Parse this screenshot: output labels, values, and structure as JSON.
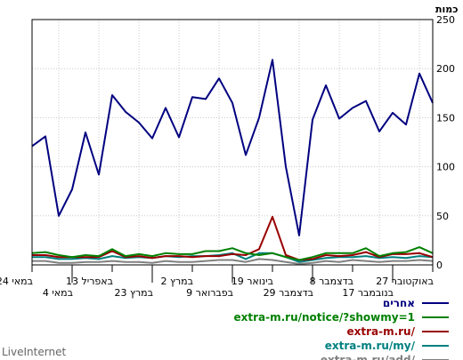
{
  "footer": {
    "brand": "LiveInternet"
  },
  "chart_data": {
    "type": "line",
    "ylabel": "כמות",
    "ylim": [
      0,
      250
    ],
    "yticks": [
      0,
      50,
      100,
      150,
      200,
      250
    ],
    "grid": true,
    "legend_position": "bottom-right",
    "x_labels_row1": [
      "27 באוקטובר",
      "8 בדצמבר",
      "19 בינואר",
      "2 במרץ",
      "13 באפריל",
      "24 במאי"
    ],
    "x_labels_row2": [
      "17 בנובמבר",
      "29 בדצמבר",
      "9 בפברואר",
      "23 במרץ",
      "4 במאי"
    ],
    "series": [
      {
        "name": "אחרים",
        "color": "#000080",
        "values": [
          165,
          195,
          143,
          155,
          136,
          167,
          160,
          149,
          183,
          148,
          30,
          100,
          209,
          150,
          112,
          165,
          190,
          169,
          171,
          130,
          160,
          129,
          145,
          156,
          173,
          92,
          135,
          77,
          50,
          131,
          121
        ]
      },
      {
        "name": "extra-m.ru/notice/?showmy=1",
        "color": "#008000",
        "values": [
          12,
          18,
          13,
          12,
          9,
          17,
          12,
          12,
          12,
          8,
          5,
          8,
          12,
          10,
          12,
          17,
          14,
          14,
          11,
          11,
          12,
          9,
          11,
          9,
          16,
          9,
          10,
          8,
          10,
          13,
          12
        ]
      },
      {
        "name": "extra-m.ru/",
        "color": "#990000",
        "values": [
          8,
          12,
          11,
          11,
          8,
          13,
          10,
          9,
          10,
          6,
          5,
          10,
          49,
          16,
          10,
          11,
          9,
          9,
          8,
          9,
          9,
          7,
          9,
          8,
          14,
          8,
          8,
          8,
          8,
          10,
          10
        ]
      },
      {
        "name": "extra-m.ru/my/",
        "color": "#008080",
        "values": [
          8,
          9,
          7,
          8,
          7,
          9,
          8,
          8,
          7,
          5,
          3,
          8,
          12,
          12,
          6,
          12,
          10,
          9,
          9,
          8,
          9,
          7,
          8,
          7,
          9,
          6,
          7,
          6,
          6,
          8,
          8
        ]
      },
      {
        "name": "extra-m.ru/add/",
        "color": "#808080",
        "values": [
          4,
          5,
          4,
          4,
          3,
          4,
          5,
          3,
          4,
          2,
          1,
          3,
          5,
          6,
          3,
          5,
          5,
          4,
          3,
          3,
          4,
          2,
          3,
          3,
          4,
          3,
          3,
          2,
          2,
          4,
          4
        ]
      }
    ]
  }
}
